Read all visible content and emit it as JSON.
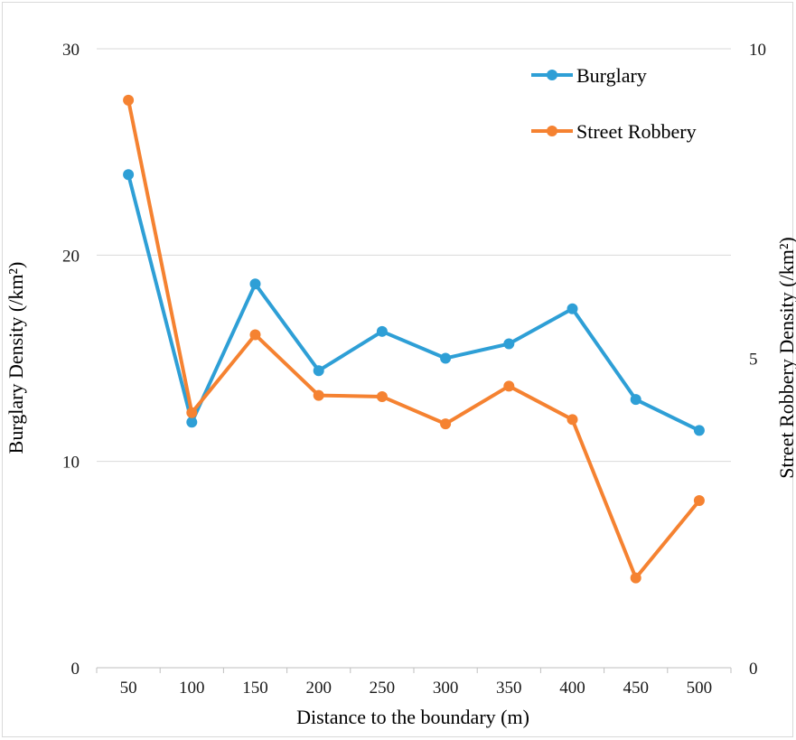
{
  "chart_data": {
    "type": "line",
    "title": "",
    "xlabel": "Distance to the boundary (m)",
    "ylabel_left": "Burglary  Density (/km²)",
    "ylabel_right": "Street Robbery Density (/km²)",
    "categories": [
      "50",
      "100",
      "150",
      "200",
      "250",
      "300",
      "350",
      "400",
      "450",
      "500"
    ],
    "y_left": {
      "lim": [
        0,
        30
      ],
      "ticks": [
        "0",
        "10",
        "20",
        "30"
      ]
    },
    "y_right": {
      "lim": [
        0,
        10
      ],
      "ticks": [
        "0",
        "5",
        "10"
      ]
    },
    "grid": true,
    "legend_position": "top-right",
    "series": [
      {
        "name": "Burglary",
        "axis": "left",
        "color": "#2e9fd6",
        "values": [
          23.9,
          11.9,
          18.6,
          14.4,
          16.3,
          15.0,
          15.7,
          17.4,
          13.0,
          11.5
        ]
      },
      {
        "name": "Street Robbery",
        "axis": "right",
        "color": "#f58231",
        "values": [
          9.17,
          4.12,
          5.38,
          4.4,
          4.38,
          3.94,
          4.55,
          4.01,
          1.45,
          2.7
        ]
      }
    ]
  }
}
